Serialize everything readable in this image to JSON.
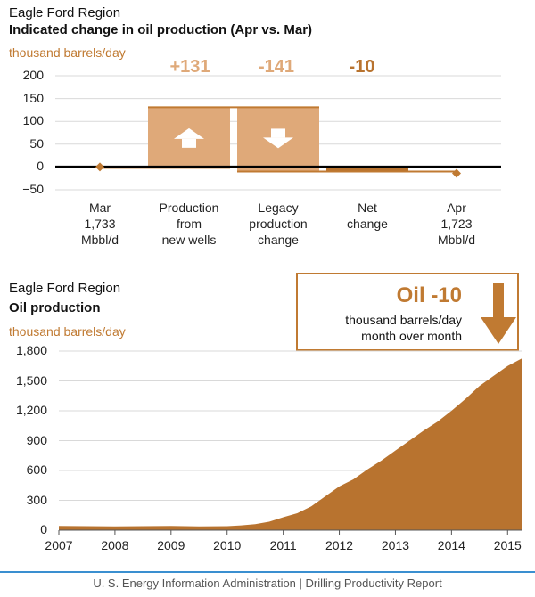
{
  "colors": {
    "accent": "#c07a32",
    "bar_fill": "#dfa979",
    "area_fill": "#b8732f",
    "footer_rule": "#3a8fd0"
  },
  "footer": {
    "source": "U. S. Energy Information Administration  |  Drilling Productivity Report"
  },
  "chart_data": [
    {
      "type": "bar",
      "region": "Eagle Ford Region",
      "title": "Indicated change in oil production (Apr vs. Mar)",
      "ylabel": "thousand barrels/day",
      "ylim": [
        -50,
        200
      ],
      "yticks": [
        200,
        150,
        100,
        50,
        0,
        -50
      ],
      "ytick_labels": [
        "200",
        "150",
        "100",
        "50",
        "0",
        "−50"
      ],
      "categories": [
        "Mar\n1,733\nMbbl/d",
        "Production\nfrom\nnew wells",
        "Legacy\nproduction\nchange",
        "Net\nchange",
        "Apr\n1,723\nMbbl/d"
      ],
      "deltas": [
        {
          "label": "+131",
          "value": 131,
          "color": "#dfa979"
        },
        {
          "label": "-141",
          "value": -141,
          "color": "#dfa979"
        },
        {
          "label": "-10",
          "value": -10,
          "color": "#b8732f"
        }
      ],
      "bar_icons": [
        "up-arrow-icon",
        "down-arrow-icon"
      ]
    },
    {
      "type": "area",
      "region": "Eagle Ford Region",
      "title": "Oil production",
      "ylabel": "thousand barrels/day",
      "ylim": [
        0,
        1800
      ],
      "yticks": [
        0,
        300,
        600,
        900,
        1200,
        1500,
        1800
      ],
      "ytick_labels": [
        "0",
        "300",
        "600",
        "900",
        "1,200",
        "1,500",
        "1,800"
      ],
      "xlim": [
        2007,
        2015.25
      ],
      "xticks": [
        2007,
        2008,
        2009,
        2010,
        2011,
        2012,
        2013,
        2014,
        2015
      ],
      "xtick_labels": [
        "2007",
        "2008",
        "2009",
        "2010",
        "2011",
        "2012",
        "2013",
        "2014",
        "2015"
      ],
      "x": [
        2007,
        2007.5,
        2008,
        2008.5,
        2009,
        2009.5,
        2010,
        2010.25,
        2010.5,
        2010.75,
        2011,
        2011.25,
        2011.5,
        2011.75,
        2012,
        2012.25,
        2012.5,
        2012.75,
        2013,
        2013.25,
        2013.5,
        2013.75,
        2014,
        2014.25,
        2014.5,
        2014.75,
        2015,
        2015.25
      ],
      "y": [
        42,
        40,
        38,
        40,
        42,
        38,
        40,
        48,
        60,
        85,
        130,
        170,
        240,
        340,
        440,
        510,
        610,
        700,
        800,
        900,
        1000,
        1090,
        1200,
        1320,
        1450,
        1550,
        1650,
        1725
      ],
      "callout": {
        "headline": "Oil -10",
        "line1": "thousand barrels/day",
        "line2": "month over month",
        "icon": "down-arrow-icon"
      }
    }
  ]
}
